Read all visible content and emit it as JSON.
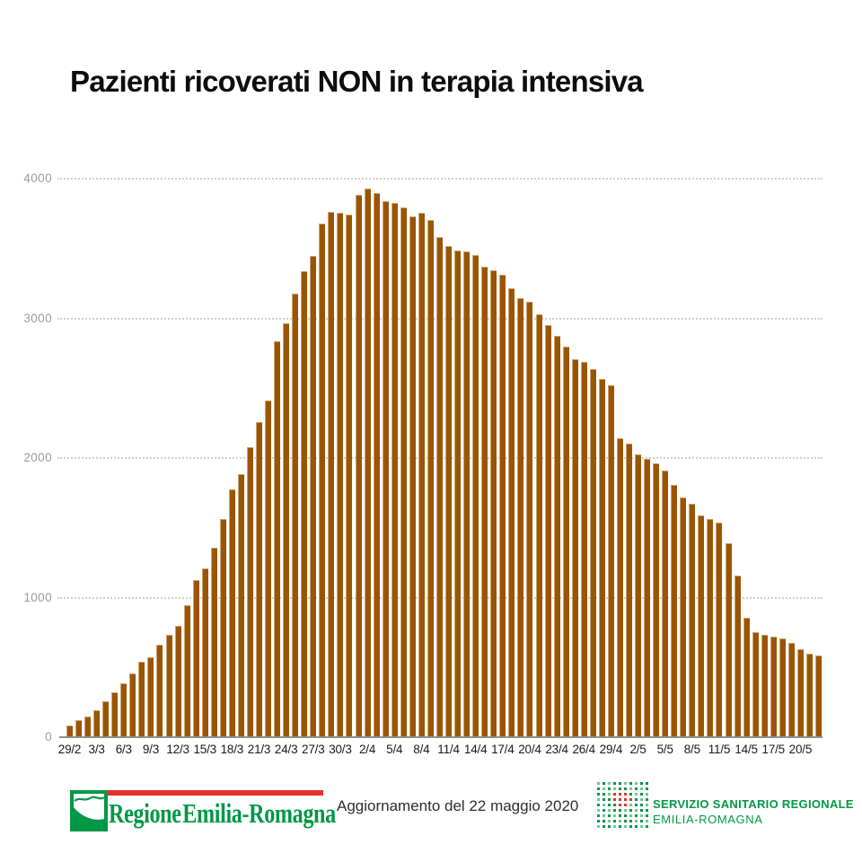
{
  "title": "Pazienti ricoverati NON in terapia intensiva",
  "chart_data": {
    "type": "bar",
    "title": "Pazienti ricoverati NON in terapia intensiva",
    "xlabel": "",
    "ylabel": "",
    "ylim": [
      0,
      4000
    ],
    "y_ticks": [
      0,
      1000,
      2000,
      3000,
      4000
    ],
    "grid": "horizontal-dotted",
    "legend": "none",
    "bar_color": "#9a5504",
    "x_tick_every": 3,
    "x": [
      "29/2",
      "1/3",
      "2/3",
      "3/3",
      "4/3",
      "5/3",
      "6/3",
      "7/3",
      "8/3",
      "9/3",
      "10/3",
      "11/3",
      "12/3",
      "13/3",
      "14/3",
      "15/3",
      "16/3",
      "17/3",
      "18/3",
      "19/3",
      "20/3",
      "21/3",
      "22/3",
      "23/3",
      "24/3",
      "25/3",
      "26/3",
      "27/3",
      "28/3",
      "29/3",
      "30/3",
      "31/3",
      "1/4",
      "2/4",
      "3/4",
      "4/4",
      "5/4",
      "6/4",
      "7/4",
      "8/4",
      "9/4",
      "10/4",
      "11/4",
      "12/4",
      "13/4",
      "14/4",
      "15/4",
      "16/4",
      "17/4",
      "18/4",
      "19/4",
      "20/4",
      "21/4",
      "22/4",
      "23/4",
      "24/4",
      "25/4",
      "26/4",
      "27/4",
      "28/4",
      "29/4",
      "30/4",
      "1/5",
      "2/5",
      "3/5",
      "4/5",
      "5/5",
      "6/5",
      "7/5",
      "8/5",
      "9/5",
      "10/5",
      "11/5",
      "12/5",
      "13/5",
      "14/5",
      "15/5",
      "16/5",
      "17/5",
      "18/5",
      "19/5",
      "20/5",
      "21/5",
      "22/5"
    ],
    "values": [
      85,
      125,
      150,
      190,
      255,
      320,
      385,
      455,
      540,
      575,
      665,
      735,
      800,
      945,
      1125,
      1210,
      1355,
      1560,
      1775,
      1885,
      2075,
      2255,
      2410,
      2835,
      2965,
      3175,
      3340,
      3445,
      3680,
      3760,
      3755,
      3745,
      3885,
      3930,
      3900,
      3840,
      3825,
      3795,
      3730,
      3755,
      3705,
      3580,
      3515,
      3485,
      3480,
      3455,
      3370,
      3345,
      3315,
      3215,
      3145,
      3120,
      3030,
      2950,
      2875,
      2800,
      2710,
      2685,
      2635,
      2565,
      2520,
      2140,
      2100,
      2025,
      1995,
      1960,
      1910,
      1810,
      1720,
      1675,
      1590,
      1560,
      1535,
      1390,
      1155,
      855,
      755,
      735,
      720,
      705,
      675,
      630,
      600,
      585
    ],
    "shown_x_labels": [
      "29/2",
      "3/3",
      "6/3",
      "9/3",
      "12/3",
      "15/3",
      "18/3",
      "21/3",
      "24/3",
      "27/3",
      "30/3",
      "2/4",
      "5/4",
      "8/4",
      "11/4",
      "14/4",
      "17/4",
      "20/4",
      "23/4",
      "26/4",
      "29/4",
      "2/5",
      "5/5",
      "8/5",
      "11/5",
      "14/5",
      "17/5",
      "20/5"
    ]
  },
  "footer": {
    "update_text": "Aggiornamento del 22 maggio 2020",
    "rer_logo_text": "Regione Emilia-Romagna",
    "ssr_line1": "SERVIZIO SANITARIO REGIONALE",
    "ssr_line2": "EMILIA-ROMAGNA"
  },
  "colors": {
    "bar": "#9a5504",
    "green_brand": "#009845",
    "red_brand": "#e63329",
    "axis_gray": "#8f8f8f",
    "ylabel_gray": "#9b9b9b",
    "xlabel_dark": "#1a1a1a"
  }
}
